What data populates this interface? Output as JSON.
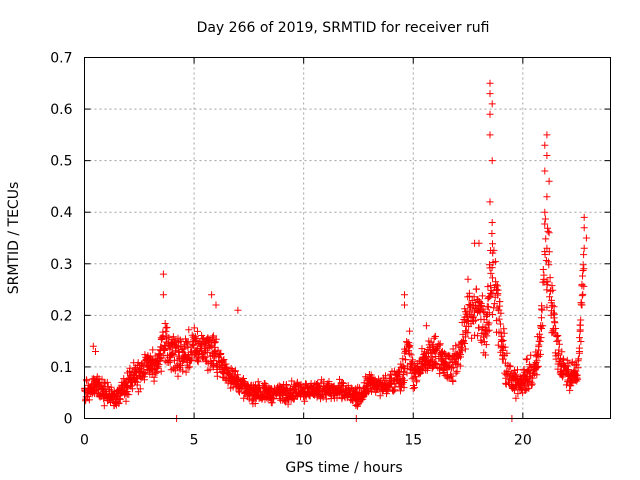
{
  "chart_data": {
    "type": "scatter",
    "title": "Day 266 of 2019, SRMTID for receiver rufi",
    "xlabel": "GPS time / hours",
    "ylabel": "SRMTID / TECUs",
    "xlim": [
      0,
      24
    ],
    "ylim": [
      0,
      0.7
    ],
    "x_ticks": [
      0,
      5,
      10,
      15,
      20
    ],
    "x_tick_labels": [
      "0",
      "5",
      "10",
      "15",
      "20"
    ],
    "y_ticks": [
      0,
      0.1,
      0.2,
      0.3,
      0.4,
      0.5,
      0.6,
      0.7
    ],
    "y_tick_labels": [
      "0",
      "0.1",
      "0.2",
      "0.3",
      "0.4",
      "0.5",
      "0.6",
      "0.7"
    ],
    "grid": true,
    "marker": "plus",
    "color": "#ff0000",
    "series": [
      {
        "name": "SRMTID",
        "envelope": [
          [
            0.0,
            0.06,
            0.03
          ],
          [
            0.3,
            0.055,
            0.025
          ],
          [
            0.5,
            0.07,
            0.03
          ],
          [
            0.8,
            0.05,
            0.02
          ],
          [
            1.0,
            0.05,
            0.02
          ],
          [
            1.5,
            0.04,
            0.02
          ],
          [
            2.0,
            0.07,
            0.03
          ],
          [
            2.5,
            0.09,
            0.03
          ],
          [
            3.0,
            0.11,
            0.03
          ],
          [
            3.3,
            0.1,
            0.03
          ],
          [
            3.6,
            0.15,
            0.05
          ],
          [
            4.0,
            0.12,
            0.04
          ],
          [
            4.5,
            0.12,
            0.04
          ],
          [
            5.0,
            0.14,
            0.04
          ],
          [
            5.5,
            0.14,
            0.04
          ],
          [
            6.0,
            0.12,
            0.04
          ],
          [
            6.5,
            0.09,
            0.03
          ],
          [
            7.0,
            0.07,
            0.02
          ],
          [
            7.5,
            0.05,
            0.02
          ],
          [
            8.0,
            0.05,
            0.02
          ],
          [
            9.0,
            0.05,
            0.02
          ],
          [
            10.0,
            0.055,
            0.02
          ],
          [
            11.0,
            0.055,
            0.02
          ],
          [
            12.0,
            0.05,
            0.02
          ],
          [
            12.5,
            0.04,
            0.02
          ],
          [
            13.0,
            0.07,
            0.02
          ],
          [
            13.5,
            0.06,
            0.02
          ],
          [
            14.0,
            0.07,
            0.02
          ],
          [
            14.5,
            0.09,
            0.04
          ],
          [
            14.8,
            0.14,
            0.05
          ],
          [
            15.0,
            0.08,
            0.03
          ],
          [
            15.5,
            0.11,
            0.03
          ],
          [
            16.0,
            0.13,
            0.04
          ],
          [
            16.5,
            0.1,
            0.03
          ],
          [
            17.0,
            0.11,
            0.04
          ],
          [
            17.5,
            0.2,
            0.06
          ],
          [
            17.8,
            0.2,
            0.06
          ],
          [
            18.0,
            0.22,
            0.07
          ],
          [
            18.3,
            0.17,
            0.06
          ],
          [
            18.6,
            0.3,
            0.1
          ],
          [
            18.9,
            0.2,
            0.06
          ],
          [
            19.2,
            0.1,
            0.04
          ],
          [
            19.5,
            0.07,
            0.03
          ],
          [
            19.8,
            0.07,
            0.03
          ],
          [
            20.2,
            0.08,
            0.03
          ],
          [
            20.5,
            0.09,
            0.03
          ],
          [
            20.8,
            0.15,
            0.05
          ],
          [
            21.0,
            0.32,
            0.1
          ],
          [
            21.2,
            0.28,
            0.08
          ],
          [
            21.5,
            0.15,
            0.05
          ],
          [
            21.8,
            0.1,
            0.03
          ],
          [
            22.2,
            0.08,
            0.03
          ],
          [
            22.5,
            0.09,
            0.03
          ],
          [
            22.8,
            0.3,
            0.05
          ]
        ],
        "spikes": [
          [
            3.6,
            0.28
          ],
          [
            3.6,
            0.24
          ],
          [
            5.8,
            0.24
          ],
          [
            6.0,
            0.22
          ],
          [
            7.0,
            0.21
          ],
          [
            14.6,
            0.24
          ],
          [
            14.6,
            0.22
          ],
          [
            15.6,
            0.18
          ],
          [
            17.5,
            0.27
          ],
          [
            17.8,
            0.34
          ],
          [
            18.0,
            0.34
          ],
          [
            18.5,
            0.65
          ],
          [
            18.5,
            0.63
          ],
          [
            18.6,
            0.61
          ],
          [
            18.5,
            0.59
          ],
          [
            18.5,
            0.55
          ],
          [
            18.6,
            0.5
          ],
          [
            18.5,
            0.42
          ],
          [
            18.6,
            0.38
          ],
          [
            18.8,
            0.25
          ],
          [
            21.1,
            0.55
          ],
          [
            21.0,
            0.53
          ],
          [
            21.1,
            0.51
          ],
          [
            21.0,
            0.48
          ],
          [
            21.2,
            0.46
          ],
          [
            21.1,
            0.43
          ],
          [
            21.0,
            0.4
          ],
          [
            21.2,
            0.36
          ],
          [
            21.1,
            0.33
          ],
          [
            22.8,
            0.39
          ],
          [
            22.8,
            0.37
          ],
          [
            22.9,
            0.35
          ],
          [
            22.8,
            0.33
          ],
          [
            22.7,
            0.26
          ],
          [
            22.7,
            0.22
          ],
          [
            0.4,
            0.14
          ],
          [
            0.5,
            0.13
          ],
          [
            19.5,
            0.0
          ],
          [
            4.2,
            0.0
          ],
          [
            12.4,
            0.0
          ]
        ]
      }
    ]
  }
}
